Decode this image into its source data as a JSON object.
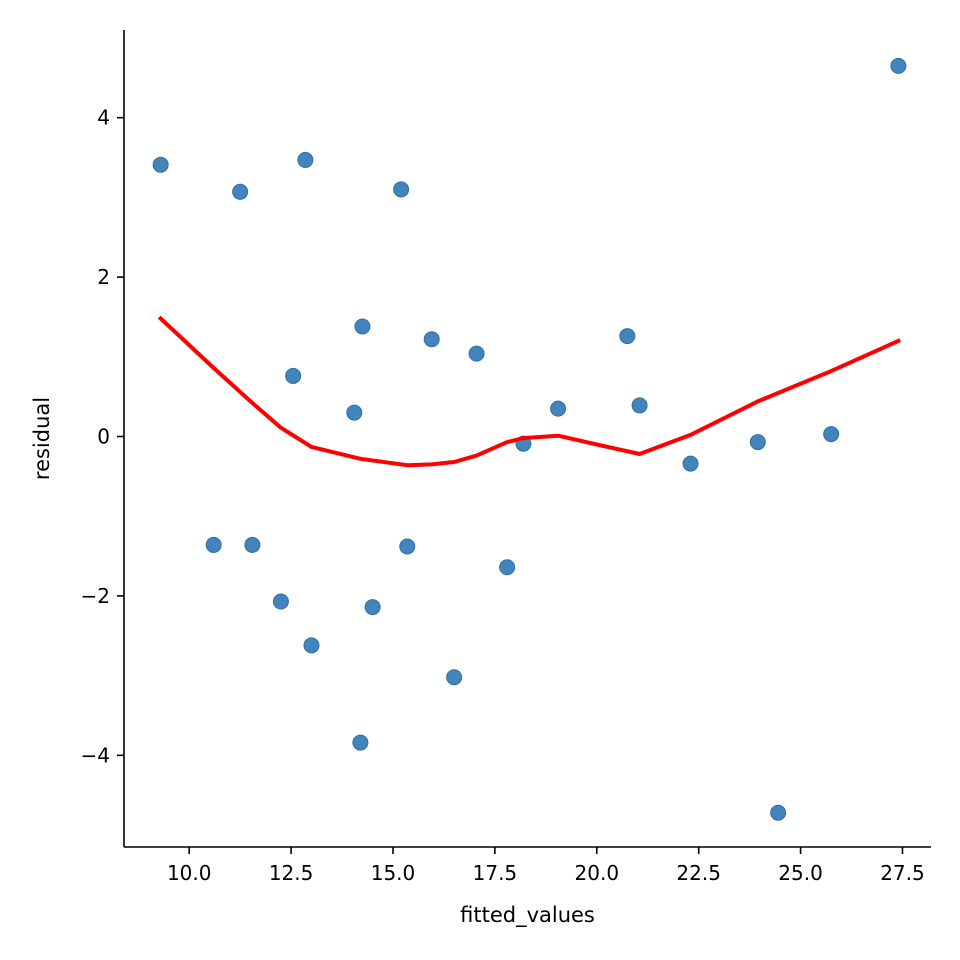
{
  "chart_data": {
    "type": "scatter",
    "title": "",
    "xlabel": "fitted_values",
    "ylabel": "residual",
    "xlim": [
      8.4,
      28.2
    ],
    "ylim": [
      -5.15,
      5.1
    ],
    "xticks": [
      10.0,
      12.5,
      15.0,
      17.5,
      20.0,
      22.5,
      25.0,
      27.5
    ],
    "xtick_labels": [
      "10.0",
      "12.5",
      "15.0",
      "17.5",
      "20.0",
      "22.5",
      "25.0",
      "27.5"
    ],
    "yticks": [
      -4,
      -2,
      0,
      2,
      4
    ],
    "ytick_labels": [
      "−4",
      "−2",
      "0",
      "2",
      "4"
    ],
    "grid": false,
    "colors": {
      "points": "#3a7db8",
      "smooth": "#ff0000"
    },
    "points": [
      {
        "x": 9.3,
        "y": 3.41
      },
      {
        "x": 10.6,
        "y": -1.36
      },
      {
        "x": 11.25,
        "y": 3.07
      },
      {
        "x": 11.55,
        "y": -1.36
      },
      {
        "x": 12.25,
        "y": -2.07
      },
      {
        "x": 12.55,
        "y": 0.76
      },
      {
        "x": 12.85,
        "y": 3.47
      },
      {
        "x": 13.0,
        "y": -2.62
      },
      {
        "x": 14.05,
        "y": 0.3
      },
      {
        "x": 14.2,
        "y": -3.84
      },
      {
        "x": 14.25,
        "y": 1.38
      },
      {
        "x": 14.5,
        "y": -2.14
      },
      {
        "x": 15.2,
        "y": 3.1
      },
      {
        "x": 15.35,
        "y": -1.38
      },
      {
        "x": 15.95,
        "y": 1.22
      },
      {
        "x": 16.5,
        "y": -3.02
      },
      {
        "x": 17.05,
        "y": 1.04
      },
      {
        "x": 17.8,
        "y": -1.64
      },
      {
        "x": 18.2,
        "y": -0.09
      },
      {
        "x": 19.05,
        "y": 0.35
      },
      {
        "x": 20.75,
        "y": 1.26
      },
      {
        "x": 21.05,
        "y": 0.39
      },
      {
        "x": 22.3,
        "y": -0.34
      },
      {
        "x": 23.95,
        "y": -0.07
      },
      {
        "x": 24.45,
        "y": -4.72
      },
      {
        "x": 25.75,
        "y": 0.03
      },
      {
        "x": 27.4,
        "y": 4.65
      }
    ],
    "smooth_line": [
      {
        "x": 9.3,
        "y": 1.48
      },
      {
        "x": 10.6,
        "y": 0.86
      },
      {
        "x": 11.55,
        "y": 0.42
      },
      {
        "x": 12.25,
        "y": 0.11
      },
      {
        "x": 13.0,
        "y": -0.13
      },
      {
        "x": 14.2,
        "y": -0.28
      },
      {
        "x": 15.35,
        "y": -0.36
      },
      {
        "x": 15.95,
        "y": -0.35
      },
      {
        "x": 16.5,
        "y": -0.32
      },
      {
        "x": 17.05,
        "y": -0.24
      },
      {
        "x": 17.8,
        "y": -0.07
      },
      {
        "x": 18.2,
        "y": -0.02
      },
      {
        "x": 19.05,
        "y": 0.01
      },
      {
        "x": 20.0,
        "y": -0.1
      },
      {
        "x": 21.05,
        "y": -0.22
      },
      {
        "x": 22.3,
        "y": 0.02
      },
      {
        "x": 23.95,
        "y": 0.44
      },
      {
        "x": 25.75,
        "y": 0.82
      },
      {
        "x": 27.4,
        "y": 1.2
      }
    ]
  }
}
